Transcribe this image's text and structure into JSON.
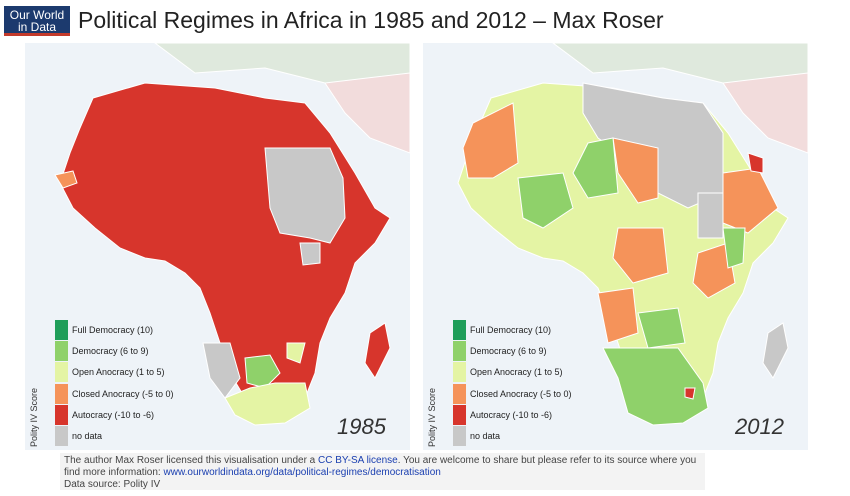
{
  "header": {
    "logo_line1": "Our World",
    "logo_line2": "in Data",
    "title": "Political Regimes in Africa in 1985 and 2012 – Max Roser"
  },
  "legend": {
    "title": "Polity IV Score",
    "items": [
      {
        "label": "Full Democracy (10)",
        "color": "#1f9e5a"
      },
      {
        "label": "Democracy (6 to 9)",
        "color": "#8fd16a"
      },
      {
        "label": "Open Anocracy (1 to 5)",
        "color": "#e4f4a4"
      },
      {
        "label": "Closed Anocracy (-5 to 0)",
        "color": "#f5935a"
      },
      {
        "label": "Autocracy (-10 to -6)",
        "color": "#d7352c"
      },
      {
        "label": "no data",
        "color": "#c8c8c8"
      }
    ]
  },
  "maps": [
    {
      "year": "1985"
    },
    {
      "year": "2012"
    }
  ],
  "footer": {
    "line1_before": "The author Max Roser licensed this visualisation under a ",
    "license_link": "CC BY-SA license",
    "line1_after": ". You are welcome to share but please refer to its source where you",
    "line2_before": "find more information: ",
    "source_link": "www.ourworldindata.org/data/political-regimes/democratisation",
    "line3": "Data source: Polity IV"
  },
  "colors": {
    "ocean": "#eef3f8",
    "land_other": "#dfe9dd",
    "land_europe": "#f2dcdc",
    "border": "#ffffff"
  }
}
